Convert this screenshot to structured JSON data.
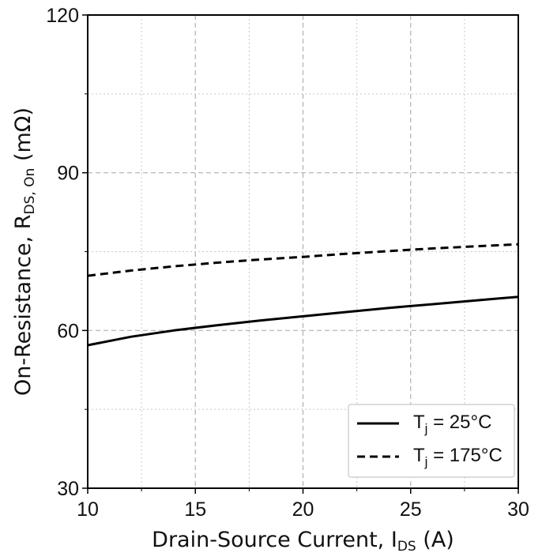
{
  "chart_data": {
    "type": "line",
    "xlabel": {
      "main": "Drain-Source Current, I",
      "sub": "DS",
      "after": " (A)"
    },
    "ylabel": {
      "main": "On-Resistance, R",
      "sub": "DS, On",
      "after": " (mΩ)"
    },
    "xlim": [
      10,
      30
    ],
    "ylim": [
      30,
      120
    ],
    "xticks": [
      "10",
      "15",
      "20",
      "25",
      "30"
    ],
    "yticks": [
      "30",
      "60",
      "90",
      "120"
    ],
    "grid": true,
    "legend_position": "bottom-right",
    "series": [
      {
        "name": "T_j = 25°C",
        "legend": {
          "pre": "T",
          "sub": "j",
          "post": " = 25°C"
        },
        "style": "solid",
        "color": "#000000",
        "x": [
          10,
          12,
          14,
          16,
          18,
          20,
          22,
          24,
          26,
          28,
          30
        ],
        "y": [
          57.2,
          58.8,
          60.0,
          61.0,
          61.9,
          62.7,
          63.5,
          64.3,
          65.0,
          65.7,
          66.4
        ]
      },
      {
        "name": "T_j = 175°C",
        "legend": {
          "pre": "T",
          "sub": "j",
          "post": " = 175°C"
        },
        "style": "dashed",
        "color": "#000000",
        "x": [
          10,
          12,
          14,
          16,
          18,
          20,
          22,
          24,
          26,
          28,
          30
        ],
        "y": [
          70.4,
          71.4,
          72.2,
          72.9,
          73.5,
          74.0,
          74.6,
          75.1,
          75.6,
          76.0,
          76.4
        ]
      }
    ]
  }
}
